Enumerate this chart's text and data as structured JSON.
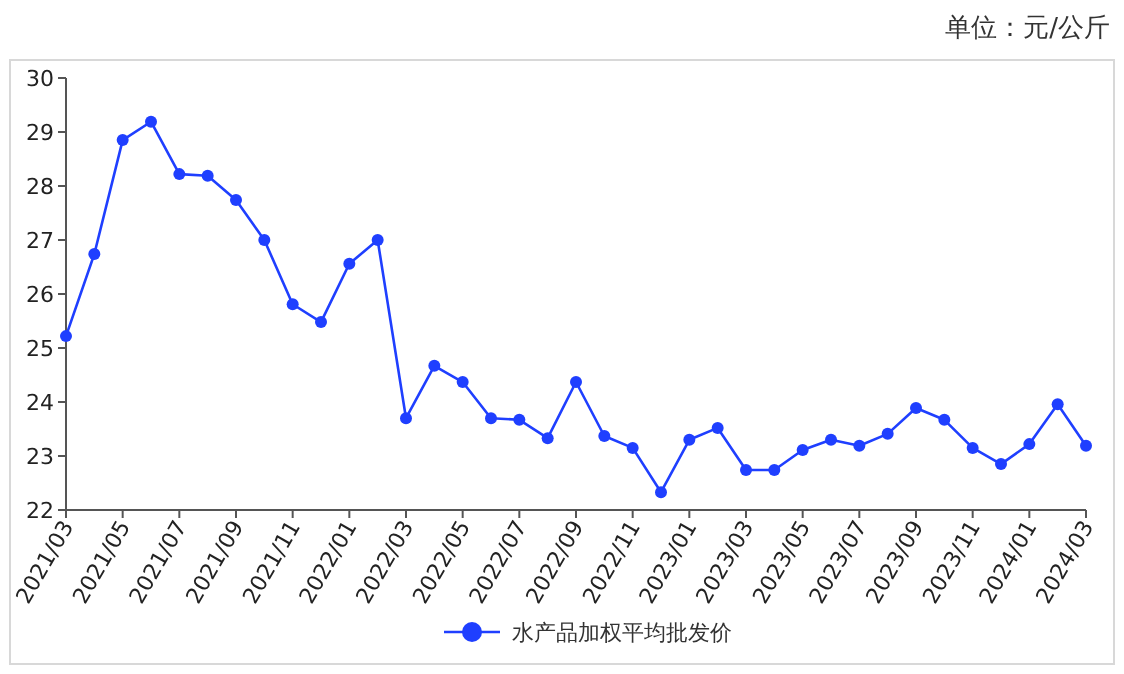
{
  "chart_data": {
    "type": "line",
    "annotations": [
      "单位：元/公斤"
    ],
    "categories": [
      "2021/03",
      null,
      "2021/05",
      null,
      "2021/07",
      null,
      "2021/09",
      null,
      "2021/11",
      null,
      "2022/01",
      null,
      "2022/03",
      null,
      "2022/05",
      null,
      "2022/07",
      null,
      "2022/09",
      null,
      "2022/11",
      null,
      "2023/01",
      null,
      "2023/03",
      null,
      "2023/05",
      null,
      "2023/07",
      null,
      "2023/09",
      null,
      "2023/11",
      null,
      "2024/01",
      null,
      "2024/03"
    ],
    "series": [
      {
        "name": "水产品加权平均批发价",
        "color": "#1f3fff",
        "values": [
          25.22,
          26.74,
          28.85,
          29.19,
          28.22,
          28.19,
          27.74,
          27.0,
          25.81,
          25.48,
          26.56,
          27.0,
          23.7,
          24.67,
          24.37,
          23.7,
          23.67,
          23.33,
          24.37,
          23.37,
          23.15,
          22.33,
          23.3,
          23.52,
          22.74,
          22.74,
          23.11,
          23.3,
          23.19,
          23.41,
          23.89,
          23.67,
          23.15,
          22.85,
          23.22,
          23.96,
          23.19
        ]
      }
    ],
    "ylim": [
      22,
      30
    ],
    "yticks": [
      22,
      23,
      24,
      25,
      26,
      27,
      28,
      29,
      30
    ],
    "grid": false,
    "legend": "bottom",
    "marker": "circle",
    "line_style": "solid"
  }
}
